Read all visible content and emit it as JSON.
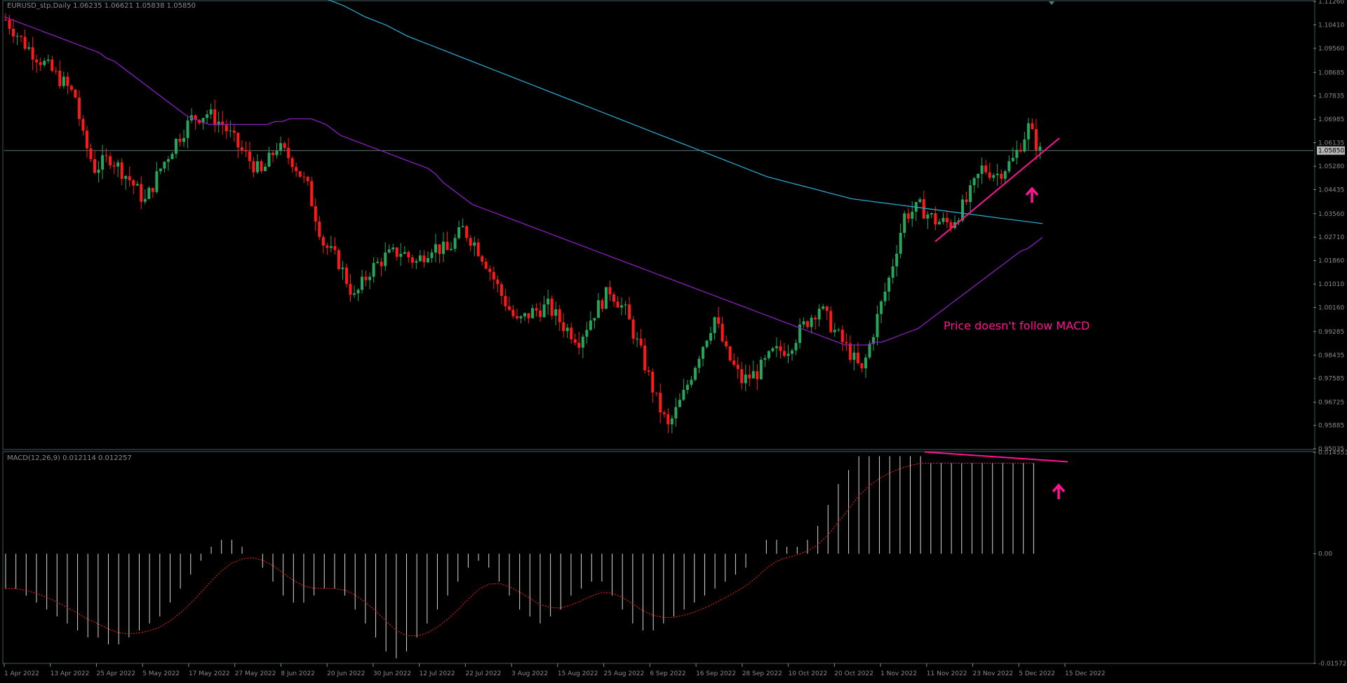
{
  "main_pane": {
    "symbol_header": "EURUSD_stp,Daily  1.06235 1.06621 1.05838 1.05850",
    "price_ticks": [
      "1.11260",
      "1.10410",
      "1.09560",
      "1.08685",
      "1.07835",
      "1.06985",
      "1.06135",
      "1.05280",
      "1.04435",
      "1.03560",
      "1.02710",
      "1.01860",
      "1.01010",
      "1.00160",
      "0.99285",
      "0.98435",
      "0.97585",
      "0.96725",
      "0.95885",
      "0.95035"
    ],
    "current_price": "1.05850",
    "annotation": "Price doesn't follow MACD"
  },
  "macd_pane": {
    "header": "MACD(12,26,9) 0.012114 0.012257",
    "ticks": [
      "0.014553",
      "0.00",
      "-0.015727"
    ]
  },
  "time_axis": {
    "labels": [
      "1 Apr 2022",
      "13 Apr 2022",
      "25 Apr 2022",
      "5 May 2022",
      "17 May 2022",
      "27 May 2022",
      "8 Jun 2022",
      "20 Jun 2022",
      "30 Jun 2022",
      "12 Jul 2022",
      "22 Jul 2022",
      "3 Aug 2022",
      "15 Aug 2022",
      "25 Aug 2022",
      "6 Sep 2022",
      "16 Sep 2022",
      "28 Sep 2022",
      "10 Oct 2022",
      "20 Oct 2022",
      "1 Nov 2022",
      "11 Nov 2022",
      "23 Nov 2022",
      "5 Dec 2022",
      "15 Dec 2022"
    ]
  },
  "colors": {
    "bull": "#26a65b",
    "bear": "#ff1a1a",
    "ma_fast": "#8a1fbf",
    "ma_slow": "#2aa5c9",
    "annotation": "#ff1493",
    "grid_line": "#5a7b7b",
    "axis_text": "#8a8a8a"
  },
  "chart_data": {
    "type": "candlestick",
    "series": [
      {
        "name": "MA fast",
        "values": [
          1.107,
          1.106,
          1.105,
          1.104,
          1.103,
          1.102,
          1.101,
          1.1,
          1.099,
          1.098,
          1.097,
          1.096,
          1.095,
          1.094,
          1.092,
          1.091,
          1.089,
          1.087,
          1.085,
          1.083,
          1.081,
          1.079,
          1.077,
          1.075,
          1.073,
          1.071,
          1.07,
          1.069,
          1.068,
          1.068,
          1.068,
          1.068,
          1.068,
          1.068,
          1.068,
          1.068,
          1.068,
          1.069,
          1.069,
          1.07,
          1.07,
          1.07,
          1.07,
          1.069,
          1.068,
          1.066,
          1.064,
          1.063,
          1.062,
          1.061,
          1.06,
          1.059,
          1.058,
          1.057,
          1.056,
          1.055,
          1.054,
          1.053,
          1.052,
          1.05,
          1.047,
          1.045,
          1.043,
          1.041,
          1.039,
          1.038,
          1.037,
          1.036,
          1.035,
          1.034,
          1.033,
          1.032,
          1.031,
          1.03,
          1.029,
          1.028,
          1.027,
          1.026,
          1.025,
          1.024,
          1.023,
          1.022,
          1.021,
          1.02,
          1.019,
          1.018,
          1.017,
          1.016,
          1.015,
          1.014,
          1.013,
          1.012,
          1.011,
          1.01,
          1.009,
          1.008,
          1.007,
          1.006,
          1.005,
          1.004,
          1.003,
          1.002,
          1.001,
          1.0,
          0.999,
          0.998,
          0.997,
          0.996,
          0.995,
          0.994,
          0.993,
          0.992,
          0.991,
          0.99,
          0.989,
          0.988,
          0.988,
          0.988,
          0.988,
          0.989,
          0.989,
          0.99,
          0.991,
          0.992,
          0.993,
          0.994,
          0.996,
          0.998,
          1.0,
          1.002,
          1.004,
          1.006,
          1.008,
          1.01,
          1.012,
          1.014,
          1.016,
          1.018,
          1.02,
          1.022,
          1.023,
          1.025,
          1.027
        ]
      },
      {
        "name": "MA slow",
        "values": [
          1.114,
          1.111,
          1.107,
          1.104,
          1.1,
          1.097,
          1.094,
          1.091,
          1.088,
          1.085,
          1.082,
          1.079,
          1.076,
          1.073,
          1.07,
          1.067,
          1.064,
          1.061,
          1.058,
          1.055,
          1.052,
          1.049,
          1.047,
          1.045,
          1.043,
          1.041,
          1.04,
          1.039,
          1.038,
          1.037,
          1.036,
          1.035,
          1.034,
          1.033,
          1.032
        ]
      }
    ],
    "macd_hist": [
      -0.005,
      -0.005,
      -0.006,
      -0.007,
      -0.008,
      -0.009,
      -0.01,
      -0.011,
      -0.012,
      -0.012,
      -0.013,
      -0.013,
      -0.012,
      -0.011,
      -0.01,
      -0.009,
      -0.007,
      -0.005,
      -0.003,
      -0.001,
      0.001,
      0.002,
      0.002,
      0.001,
      0.0,
      -0.002,
      -0.004,
      -0.006,
      -0.007,
      -0.007,
      -0.006,
      -0.005,
      -0.005,
      -0.006,
      -0.008,
      -0.01,
      -0.012,
      -0.014,
      -0.015,
      -0.014,
      -0.012,
      -0.01,
      -0.008,
      -0.006,
      -0.004,
      -0.002,
      -0.001,
      -0.002,
      -0.004,
      -0.006,
      -0.008,
      -0.009,
      -0.01,
      -0.009,
      -0.008,
      -0.006,
      -0.005,
      -0.004,
      -0.004,
      -0.006,
      -0.008,
      -0.01,
      -0.011,
      -0.011,
      -0.01,
      -0.009,
      -0.008,
      -0.007,
      -0.006,
      -0.005,
      -0.004,
      -0.003,
      -0.002,
      0.0,
      0.002,
      0.002,
      0.001,
      0.001,
      0.002,
      0.004,
      0.007,
      0.01,
      0.012,
      0.014,
      0.014,
      0.014,
      0.014,
      0.014,
      0.014,
      0.014,
      0.013,
      0.013,
      0.013,
      0.013,
      0.013,
      0.013,
      0.013,
      0.013,
      0.013,
      0.013,
      0.013
    ],
    "ylim": [
      0.95035,
      1.1126
    ],
    "macd_ylim": [
      -0.015727,
      0.014553
    ]
  }
}
